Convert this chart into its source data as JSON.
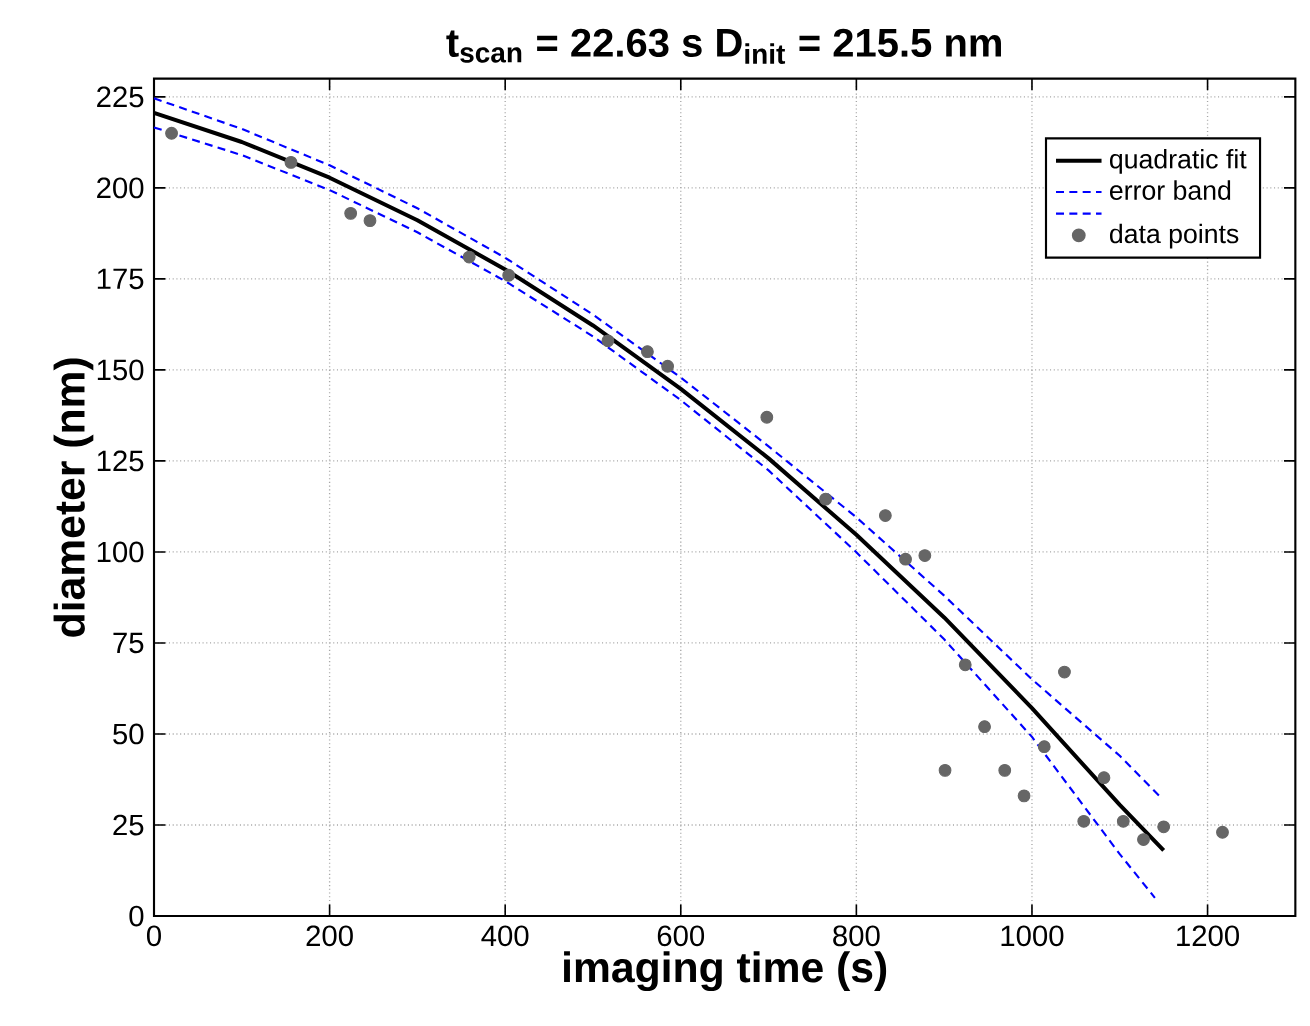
{
  "chart_data": {
    "type": "scatter",
    "title": "t$_{scan}$ = 22.63 s    D$_{init}$ = 215.5 nm",
    "xlabel": "imaging time (s)",
    "ylabel": "diameter (nm)",
    "xlim": [
      0,
      1300
    ],
    "ylim": [
      0,
      230
    ],
    "xticks": [
      0,
      200,
      400,
      600,
      800,
      1000,
      1200
    ],
    "yticks": [
      0,
      25,
      50,
      75,
      100,
      125,
      150,
      175,
      200,
      225
    ],
    "grid": true,
    "legend": "top right",
    "series": [
      {
        "name": "quadratic fit",
        "type": "line",
        "color": "#000000",
        "line_style": "solid",
        "marker": "none",
        "x": [
          0,
          100,
          200,
          300,
          400,
          500,
          600,
          700,
          800,
          900,
          1000,
          1100,
          1150
        ],
        "values": [
          220.6,
          212.6,
          202.8,
          191.1,
          177.6,
          162.2,
          144.8,
          125.7,
          104.7,
          82.0,
          57.1,
          30.5,
          18
        ]
      },
      {
        "name": "error band",
        "type": "line",
        "color": "#0000ff",
        "line_style": "dashed",
        "marker": "none",
        "x": [
          0,
          100,
          200,
          300,
          400,
          500,
          600,
          700,
          800,
          900,
          1000,
          1100,
          1145
        ],
        "values": [
          224.6,
          216.2,
          206.2,
          194.4,
          180.8,
          165.2,
          147.9,
          129.0,
          109.5,
          88.0,
          65,
          44,
          33
        ]
      },
      {
        "type": "line",
        "color": "#0000ff",
        "line_style": "dashed",
        "marker": "none",
        "x": [
          0,
          100,
          200,
          300,
          400,
          500,
          600,
          700,
          800,
          900,
          1000,
          1100,
          1140
        ],
        "values": [
          216.6,
          209.0,
          199.4,
          187.8,
          174.4,
          159.2,
          141.7,
          122.4,
          99.9,
          76.0,
          49.2,
          17,
          5
        ]
      },
      {
        "name": "data points",
        "color": "#666666",
        "marker": "circle",
        "x": [
          20,
          156,
          224,
          246,
          359,
          404,
          517,
          562,
          585,
          698,
          765,
          833,
          856,
          878,
          901,
          924,
          946,
          969,
          991,
          1014,
          1037,
          1059,
          1082,
          1104,
          1127,
          1150,
          1217
        ],
        "values": [
          215,
          207,
          193,
          191,
          181,
          176,
          158,
          155,
          151,
          137,
          114.5,
          110,
          98,
          99,
          40,
          69,
          52,
          40,
          33,
          46.5,
          67,
          26,
          38,
          26,
          21,
          24.5,
          23
        ]
      }
    ]
  }
}
